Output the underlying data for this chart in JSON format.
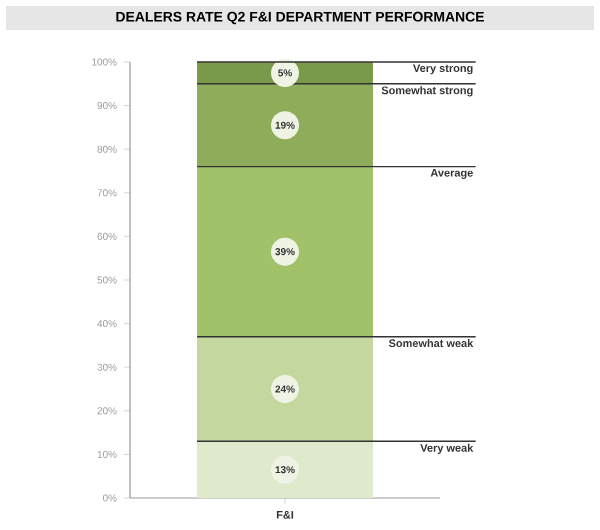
{
  "chart_data": {
    "type": "bar",
    "title": "DEALERS RATE Q2 F&I DEPARTMENT PERFORMANCE",
    "stacked": true,
    "categories": [
      "F&I"
    ],
    "series": [
      {
        "name": "Very weak",
        "color": "#dfe9cc",
        "values": [
          13
        ],
        "value_labels": [
          "13%"
        ]
      },
      {
        "name": "Somewhat weak",
        "color": "#c3d79e",
        "values": [
          24
        ],
        "value_labels": [
          "24%"
        ]
      },
      {
        "name": "Average",
        "color": "#a2c26a",
        "values": [
          39
        ],
        "value_labels": [
          "39%"
        ]
      },
      {
        "name": "Somewhat strong",
        "color": "#8fac5a",
        "values": [
          19
        ],
        "value_labels": [
          "19%"
        ]
      },
      {
        "name": "Very strong",
        "color": "#7b9a49",
        "values": [
          5
        ],
        "value_labels": [
          "5%"
        ]
      }
    ],
    "ylim": [
      0,
      100
    ],
    "yticks": [
      {
        "value": 0,
        "label": "0%"
      },
      {
        "value": 10,
        "label": "10%"
      },
      {
        "value": 20,
        "label": "20%"
      },
      {
        "value": 30,
        "label": "30%"
      },
      {
        "value": 40,
        "label": "40%"
      },
      {
        "value": 50,
        "label": "50%"
      },
      {
        "value": 60,
        "label": "60%"
      },
      {
        "value": 70,
        "label": "70%"
      },
      {
        "value": 80,
        "label": "80%"
      },
      {
        "value": 90,
        "label": "90%"
      },
      {
        "value": 100,
        "label": "100%"
      }
    ]
  }
}
